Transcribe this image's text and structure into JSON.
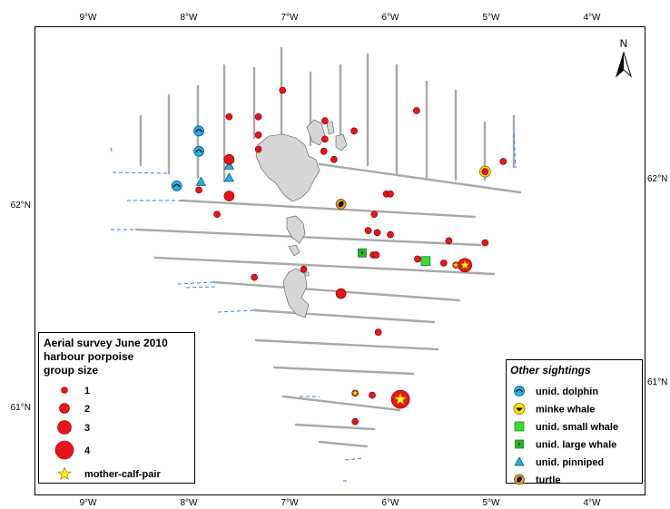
{
  "axes": {
    "x_ticks": [
      "9°W",
      "8°W",
      "7°W",
      "6°W",
      "5°W",
      "4°W"
    ],
    "y_ticks": [
      "62°N",
      "61°N"
    ]
  },
  "north_label": "N",
  "porpoise_legend": {
    "title_lines": [
      "Aerial survey June 2010",
      "harbour porpoise",
      "group size"
    ],
    "sizes": [
      "1",
      "2",
      "3",
      "4"
    ],
    "mother_calf_label": "mother-calf-pair"
  },
  "other_legend": {
    "title": "Other sightings",
    "items": [
      {
        "label": "unid. dolphin",
        "icon": "dolphin-icon"
      },
      {
        "label": "minke whale",
        "icon": "whale-icon"
      },
      {
        "label": "unid. small whale",
        "icon": "square-icon"
      },
      {
        "label": "unid. large whale",
        "icon": "square-dot-icon"
      },
      {
        "label": "unid. pinniped",
        "icon": "triangle-icon"
      },
      {
        "label": "turtle",
        "icon": "turtle-icon"
      }
    ]
  },
  "colors": {
    "porpoise": "#e8141c",
    "dolphin": "#1ab2e8",
    "minke": "#ffe400",
    "small_whale": "#33dd33",
    "large_whale": "#22bb22",
    "pinniped": "#1ab2e8",
    "turtle": "#f0a020",
    "transect": "#a9a9a9",
    "offeffort": "#3d7de0",
    "land": "#d6d6d6"
  },
  "porpoise_sightings": [
    {
      "lon": -7.07,
      "lat": 62.56,
      "size": 1
    },
    {
      "lon": -7.6,
      "lat": 62.43,
      "size": 1
    },
    {
      "lon": -7.31,
      "lat": 62.43,
      "size": 1
    },
    {
      "lon": -6.65,
      "lat": 62.41,
      "size": 1
    },
    {
      "lon": -5.74,
      "lat": 62.46,
      "size": 1
    },
    {
      "lon": -6.36,
      "lat": 62.36,
      "size": 1
    },
    {
      "lon": -7.31,
      "lat": 62.34,
      "size": 1
    },
    {
      "lon": -6.65,
      "lat": 62.32,
      "size": 1
    },
    {
      "lon": -7.31,
      "lat": 62.27,
      "size": 1
    },
    {
      "lon": -6.66,
      "lat": 62.26,
      "size": 1
    },
    {
      "lon": -7.6,
      "lat": 62.22,
      "size": 2
    },
    {
      "lon": -6.56,
      "lat": 62.22,
      "size": 1
    },
    {
      "lon": -4.88,
      "lat": 62.21,
      "size": 1
    },
    {
      "lon": -5.06,
      "lat": 62.16,
      "size": 1
    },
    {
      "lon": -7.9,
      "lat": 62.07,
      "size": 1
    },
    {
      "lon": -7.6,
      "lat": 62.04,
      "size": 2
    },
    {
      "lon": -6.04,
      "lat": 62.05,
      "size": 1
    },
    {
      "lon": -6.0,
      "lat": 62.05,
      "size": 1
    },
    {
      "lon": -7.72,
      "lat": 61.95,
      "size": 1
    },
    {
      "lon": -6.16,
      "lat": 61.95,
      "size": 1
    },
    {
      "lon": -6.22,
      "lat": 61.87,
      "size": 1
    },
    {
      "lon": -6.13,
      "lat": 61.86,
      "size": 1
    },
    {
      "lon": -6.0,
      "lat": 61.85,
      "size": 1
    },
    {
      "lon": -5.42,
      "lat": 61.82,
      "size": 1
    },
    {
      "lon": -5.06,
      "lat": 61.81,
      "size": 1
    },
    {
      "lon": -6.17,
      "lat": 61.75,
      "size": 1
    },
    {
      "lon": -6.14,
      "lat": 61.75,
      "size": 1
    },
    {
      "lon": -5.73,
      "lat": 61.73,
      "size": 1
    },
    {
      "lon": -5.47,
      "lat": 61.71,
      "size": 1
    },
    {
      "lon": -5.35,
      "lat": 61.7,
      "size": 1,
      "mother_calf": true
    },
    {
      "lon": -5.26,
      "lat": 61.7,
      "size": 3,
      "mother_calf": true
    },
    {
      "lon": -6.86,
      "lat": 61.68,
      "size": 1
    },
    {
      "lon": -7.35,
      "lat": 61.64,
      "size": 1
    },
    {
      "lon": -6.49,
      "lat": 61.56,
      "size": 2
    },
    {
      "lon": -6.12,
      "lat": 61.37,
      "size": 1
    },
    {
      "lon": -6.35,
      "lat": 61.07,
      "size": 1,
      "mother_calf": true
    },
    {
      "lon": -6.18,
      "lat": 61.06,
      "size": 1
    },
    {
      "lon": -5.9,
      "lat": 61.04,
      "size": 4,
      "mother_calf": true
    },
    {
      "lon": -6.35,
      "lat": 60.93,
      "size": 1
    }
  ],
  "other_sightings": [
    {
      "type": "dolphin",
      "lon": -7.9,
      "lat": 62.36
    },
    {
      "type": "dolphin",
      "lon": -7.9,
      "lat": 62.26
    },
    {
      "type": "dolphin",
      "lon": -8.12,
      "lat": 62.09
    },
    {
      "type": "pinniped",
      "lon": -7.6,
      "lat": 62.19
    },
    {
      "type": "pinniped",
      "lon": -7.6,
      "lat": 62.13
    },
    {
      "type": "pinniped",
      "lon": -7.88,
      "lat": 62.11
    },
    {
      "type": "minke",
      "lon": -5.06,
      "lat": 62.16
    },
    {
      "type": "turtle",
      "lon": -6.49,
      "lat": 62.0
    },
    {
      "type": "large_whale",
      "lon": -6.28,
      "lat": 61.76
    },
    {
      "type": "small_whale",
      "lon": -5.65,
      "lat": 61.72
    }
  ]
}
